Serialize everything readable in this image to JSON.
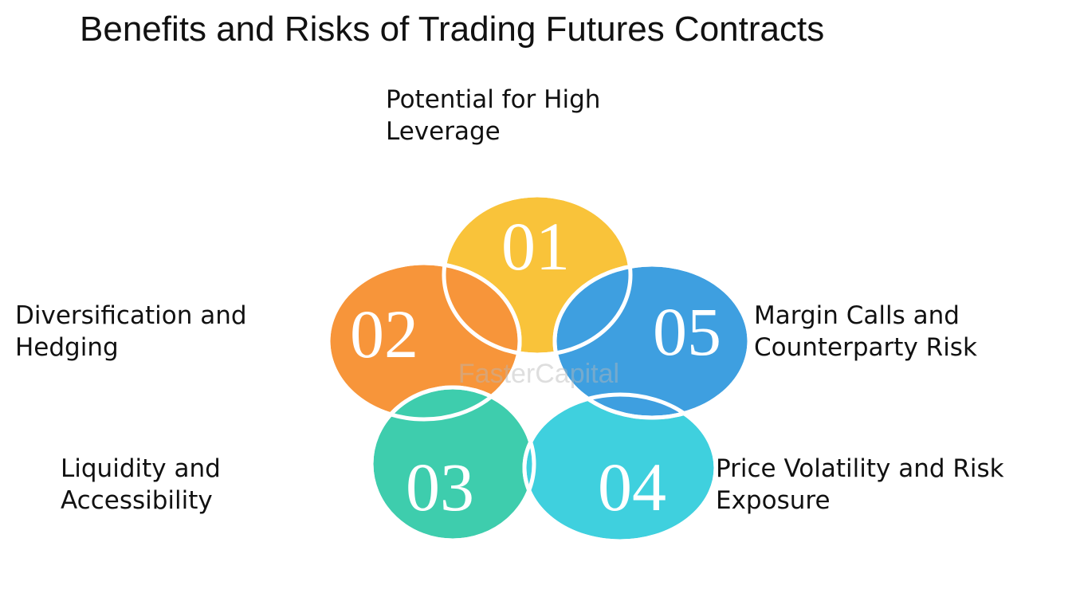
{
  "title": "Benefits and Risks of Trading Futures Contracts",
  "watermark": "FasterCapital",
  "items": [
    {
      "number": "01",
      "label_lines": [
        "Potential for High",
        "Leverage"
      ],
      "color": "#f9c33a"
    },
    {
      "number": "02",
      "label_lines": [
        "Diversification and",
        "Hedging"
      ],
      "color": "#f7953a"
    },
    {
      "number": "03",
      "label_lines": [
        "Liquidity and",
        "Accessibility"
      ],
      "color": "#3ecdad"
    },
    {
      "number": "04",
      "label_lines": [
        "Price Volatility and Risk",
        "Exposure"
      ],
      "color": "#3fd0de"
    },
    {
      "number": "05",
      "label_lines": [
        "Margin Calls and",
        "Counterparty Risk"
      ],
      "color": "#3e9fe0"
    }
  ],
  "colors": {
    "background": "#ffffff",
    "text": "#111111",
    "outline": "#ffffff"
  }
}
